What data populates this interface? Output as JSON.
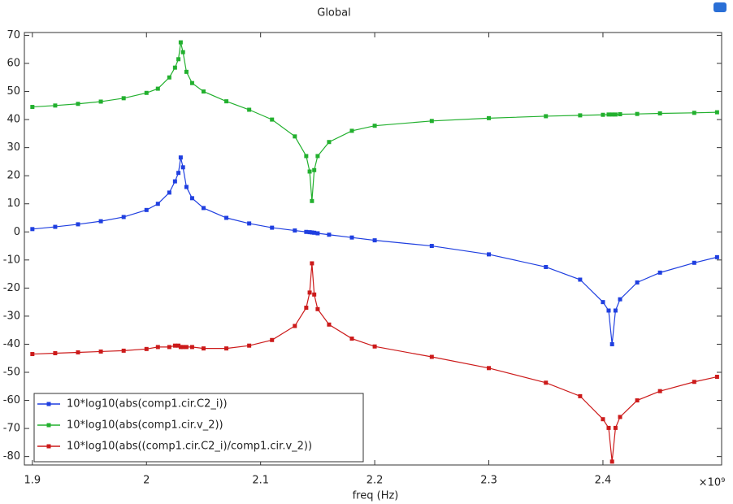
{
  "chart_data": {
    "type": "line",
    "title": "Global",
    "x_label": "freq (Hz)",
    "x_scale_label": "×10⁹",
    "x": [
      1.9,
      1.92,
      1.94,
      1.96,
      1.98,
      2.0,
      2.01,
      2.02,
      2.025,
      2.028,
      2.03,
      2.032,
      2.035,
      2.04,
      2.05,
      2.07,
      2.09,
      2.11,
      2.13,
      2.14,
      2.143,
      2.145,
      2.147,
      2.15,
      2.16,
      2.18,
      2.2,
      2.25,
      2.3,
      2.35,
      2.38,
      2.4,
      2.405,
      2.408,
      2.411,
      2.415,
      2.43,
      2.45,
      2.48,
      2.5
    ],
    "series": [
      {
        "name": "10*log10(abs(comp1.cir.C2_i))",
        "color": "#1f3fe0",
        "values": [
          1,
          1.8,
          2.7,
          3.8,
          5.3,
          7.8,
          10,
          14,
          18,
          21,
          26.5,
          23,
          16,
          12,
          8.5,
          5,
          3,
          1.5,
          0.5,
          0,
          -0.1,
          -0.2,
          -0.3,
          -0.5,
          -1,
          -2,
          -3,
          -5,
          -8,
          -12.5,
          -17,
          -25,
          -28,
          -40,
          -28,
          -24,
          -18,
          -14.5,
          -11,
          -9
        ]
      },
      {
        "name": "10*log10(abs(comp1.cir.v_2))",
        "color": "#22b02e",
        "values": [
          44.5,
          45,
          45.6,
          46.4,
          47.6,
          49.5,
          51,
          55,
          58.5,
          61.5,
          67.5,
          64,
          57,
          53,
          50,
          46.5,
          43.5,
          40,
          34,
          27,
          21.5,
          11,
          22,
          27,
          32,
          36,
          37.8,
          39.5,
          40.5,
          41.2,
          41.5,
          41.7,
          41.8,
          41.8,
          41.8,
          41.9,
          42,
          42.2,
          42.4,
          42.6
        ]
      },
      {
        "name": "10*log10(abs((comp1.cir.C2_i)/comp1.cir.v_2))",
        "color": "#cc1a1a",
        "values": [
          -43.5,
          -43.2,
          -42.9,
          -42.6,
          -42.3,
          -41.7,
          -41,
          -41,
          -40.5,
          -40.5,
          -41,
          -41,
          -41,
          -41,
          -41.5,
          -41.5,
          -40.5,
          -38.5,
          -33.5,
          -27,
          -21.6,
          -11.2,
          -22.3,
          -27.5,
          -33,
          -38,
          -40.8,
          -44.5,
          -48.5,
          -53.7,
          -58.5,
          -66.7,
          -69.8,
          -81.8,
          -69.8,
          -65.9,
          -60,
          -56.7,
          -53.4,
          -51.6
        ]
      }
    ],
    "xlim": [
      1.893,
      2.504
    ],
    "ylim": [
      -83,
      71
    ],
    "xticks": [
      1.9,
      2,
      2.1,
      2.2,
      2.3,
      2.4
    ],
    "yticks": [
      -80,
      -70,
      -60,
      -50,
      -40,
      -30,
      -20,
      -10,
      0,
      10,
      20,
      30,
      40,
      50,
      60,
      70
    ],
    "grid": false,
    "legend": "lower left"
  }
}
